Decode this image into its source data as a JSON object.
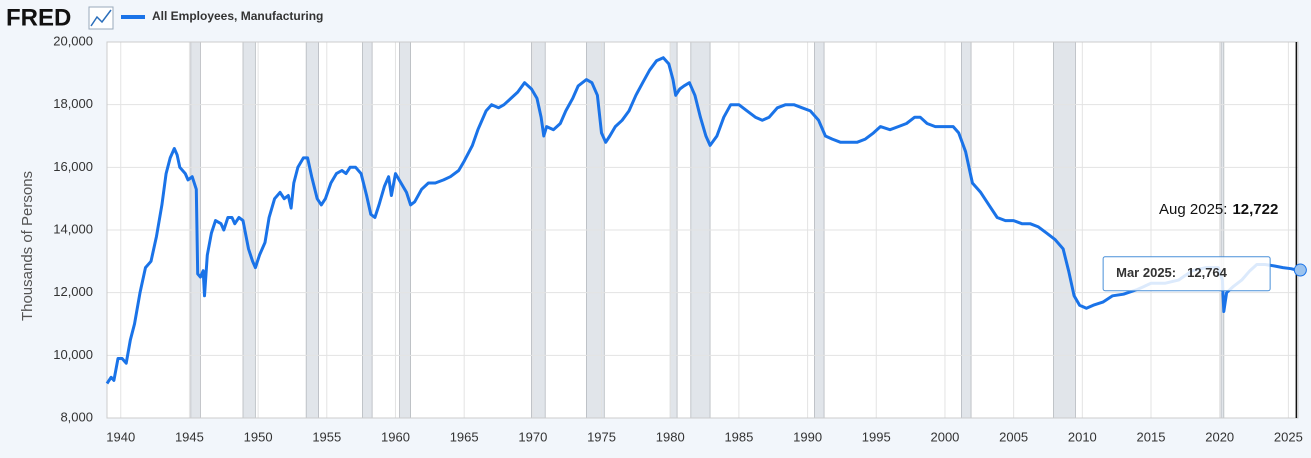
{
  "chart_data": {
    "type": "line",
    "logo": "FRED",
    "ylabel": "Thousands of Persons",
    "series": [
      {
        "name": "All Employees, Manufacturing",
        "color": "#1a73e8",
        "values": [
          9100,
          9300,
          9200,
          9900,
          9900,
          9750,
          10500,
          11000,
          12000,
          12800,
          13000,
          13800,
          14800,
          15800,
          16300,
          16600,
          16400,
          16000,
          15800,
          15600,
          15700,
          15300,
          12600,
          12500,
          12700,
          11900,
          13200,
          13900,
          14300,
          14200,
          14000,
          14400,
          14400,
          14200,
          14400,
          14300,
          13400,
          13000,
          12800,
          13200,
          13600,
          14400,
          15000,
          15200,
          15000,
          15100,
          14700,
          15500,
          16000,
          16300,
          16300,
          15700,
          15000,
          14800,
          15000,
          15500,
          15800,
          15900,
          15800,
          16000,
          16000,
          15800,
          15100,
          14500,
          14400,
          14800,
          15400,
          15700,
          15100,
          15800,
          15500,
          15200,
          14800,
          14900,
          15300,
          15500,
          15500,
          15600,
          15700,
          15900,
          16200,
          16700,
          17200,
          17800,
          18000,
          17900,
          18000,
          18200,
          18400,
          18700,
          18500,
          18200,
          17600,
          17000,
          17300,
          17200,
          17400,
          17800,
          18200,
          18600,
          18800,
          18700,
          18300,
          17100,
          16800,
          17000,
          17300,
          17500,
          17800,
          18300,
          18700,
          19100,
          19400,
          19500,
          19300,
          18800,
          18300,
          18500,
          18600,
          18700,
          18300,
          17600,
          17000,
          16700,
          17000,
          17600,
          18000,
          18000,
          17800,
          17600,
          17500,
          17600,
          17900,
          18000,
          18000,
          17900,
          17800,
          17500,
          17000,
          16900,
          16800,
          16800,
          16800,
          16900,
          17100,
          17300,
          17200,
          17300,
          17400,
          17600,
          17600,
          17400,
          17300,
          17300,
          17300,
          17100,
          16500,
          15500,
          15200,
          14800,
          14400,
          14300,
          14300,
          14200,
          14200,
          14100,
          13900,
          13700,
          13400,
          12700,
          11900,
          11600,
          11500,
          11600,
          11700,
          11900,
          11950,
          12100,
          12300,
          12300,
          12400,
          12700,
          12800,
          12800,
          12400,
          11400,
          12000,
          12200,
          12400,
          12700,
          12900,
          12900,
          12850,
          12800,
          12764,
          12722
        ]
      }
    ],
    "x": [
      1939.0,
      1939.3,
      1939.5,
      1939.8,
      1940.1,
      1940.4,
      1940.7,
      1941.0,
      1941.4,
      1941.8,
      1942.2,
      1942.6,
      1943.0,
      1943.3,
      1943.6,
      1943.9,
      1944.1,
      1944.3,
      1944.7,
      1944.9,
      1945.2,
      1945.5,
      1945.6,
      1945.8,
      1946.0,
      1946.1,
      1946.3,
      1946.6,
      1946.9,
      1947.3,
      1947.5,
      1947.8,
      1948.1,
      1948.3,
      1948.6,
      1948.9,
      1949.3,
      1949.6,
      1949.8,
      1950.1,
      1950.5,
      1950.8,
      1951.2,
      1951.6,
      1951.9,
      1952.2,
      1952.4,
      1952.6,
      1952.9,
      1953.3,
      1953.6,
      1953.9,
      1954.3,
      1954.6,
      1954.9,
      1955.3,
      1955.7,
      1956.1,
      1956.4,
      1956.7,
      1957.1,
      1957.5,
      1957.9,
      1958.2,
      1958.5,
      1958.8,
      1959.2,
      1959.5,
      1959.7,
      1960.0,
      1960.4,
      1960.8,
      1961.1,
      1961.4,
      1961.9,
      1962.4,
      1962.9,
      1963.5,
      1964.0,
      1964.6,
      1965.0,
      1965.6,
      1966.0,
      1966.6,
      1967.0,
      1967.5,
      1967.9,
      1968.4,
      1968.9,
      1969.4,
      1969.9,
      1970.3,
      1970.6,
      1970.8,
      1971.0,
      1971.5,
      1972.0,
      1972.4,
      1972.9,
      1973.3,
      1973.9,
      1974.3,
      1974.7,
      1975.0,
      1975.3,
      1975.6,
      1976.0,
      1976.5,
      1977.0,
      1977.5,
      1978.0,
      1978.5,
      1979.0,
      1979.5,
      1979.9,
      1980.2,
      1980.4,
      1980.7,
      1981.0,
      1981.4,
      1981.8,
      1982.2,
      1982.6,
      1982.9,
      1983.4,
      1983.9,
      1984.4,
      1985.0,
      1985.6,
      1986.2,
      1986.7,
      1987.2,
      1987.8,
      1988.4,
      1989.0,
      1989.6,
      1990.2,
      1990.8,
      1991.3,
      1991.8,
      1992.4,
      1993.0,
      1993.6,
      1994.2,
      1994.8,
      1995.3,
      1996.0,
      1996.6,
      1997.2,
      1997.8,
      1998.2,
      1998.7,
      1999.3,
      2000.0,
      2000.6,
      2001.0,
      2001.5,
      2002.0,
      2002.6,
      2003.2,
      2003.8,
      2004.4,
      2005.0,
      2005.6,
      2006.2,
      2006.8,
      2007.4,
      2008.0,
      2008.6,
      2009.0,
      2009.4,
      2009.8,
      2010.3,
      2010.8,
      2011.5,
      2012.2,
      2013.0,
      2014.0,
      2015.0,
      2016.0,
      2017.0,
      2018.0,
      2019.0,
      2019.9,
      2020.2,
      2020.3,
      2020.5,
      2021.0,
      2021.6,
      2022.2,
      2022.7,
      2023.3,
      2024.0,
      2024.6,
      2025.2,
      2025.58
    ],
    "recessions": [
      [
        1945.1,
        1945.8
      ],
      [
        1948.9,
        1949.8
      ],
      [
        1953.5,
        1954.4
      ],
      [
        1957.6,
        1958.3
      ],
      [
        1960.3,
        1961.1
      ],
      [
        1969.9,
        1970.9
      ],
      [
        1973.9,
        1975.2
      ],
      [
        1980.0,
        1980.5
      ],
      [
        1981.5,
        1982.9
      ],
      [
        1990.5,
        1991.2
      ],
      [
        2001.2,
        2001.9
      ],
      [
        2007.9,
        2009.5
      ],
      [
        2020.1,
        2020.3
      ]
    ],
    "xlim": [
      1939,
      2025.7
    ],
    "xticks": [
      1940,
      1945,
      1950,
      1955,
      1960,
      1965,
      1970,
      1975,
      1980,
      1985,
      1990,
      1995,
      2000,
      2005,
      2010,
      2015,
      2020,
      2025
    ],
    "ylim": [
      8000,
      20000
    ],
    "yticks": [
      {
        "value": 8000,
        "label": "8,000"
      },
      {
        "value": 10000,
        "label": "10,000"
      },
      {
        "value": 12000,
        "label": "12,000"
      },
      {
        "value": 14000,
        "label": "14,000"
      },
      {
        "value": 16000,
        "label": "16,000"
      },
      {
        "value": 18000,
        "label": "18,000"
      },
      {
        "value": 20000,
        "label": "20,000"
      }
    ],
    "grid": true,
    "annotation": {
      "text": "Aug 2025:",
      "x": 2025.58,
      "value": 12722,
      "value_label": "12,722"
    },
    "tooltip": {
      "text": "Mar 2025:",
      "x": 2025.2,
      "value": 12764,
      "value_label": "12,764"
    }
  }
}
